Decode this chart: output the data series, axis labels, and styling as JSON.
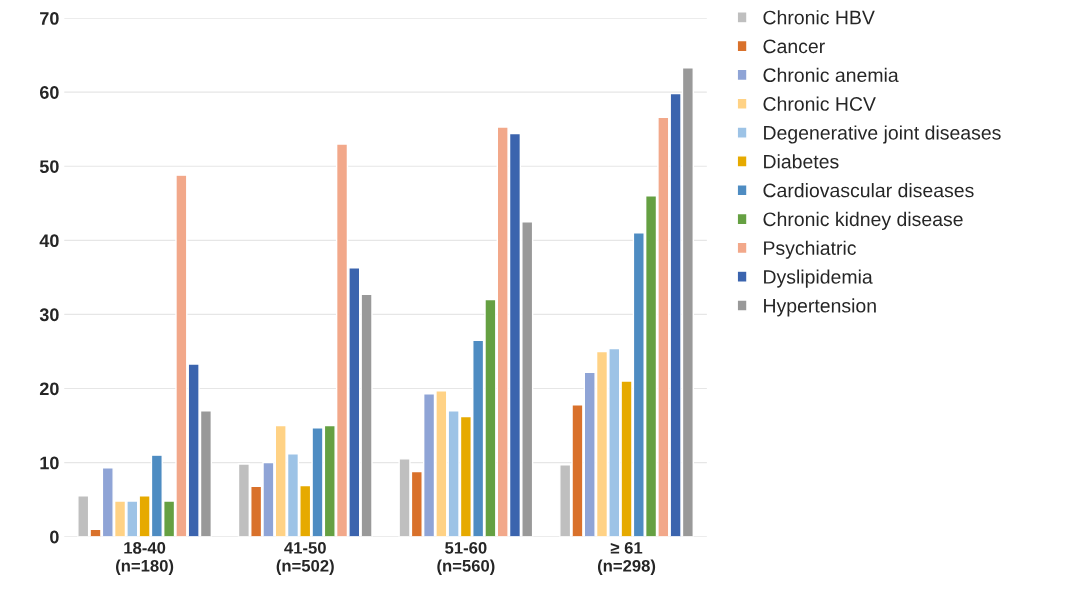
{
  "chart_data": {
    "type": "bar",
    "categories": [
      "18-40\n(n=180)",
      "41-50\n(n=502)",
      "51-60\n(n=560)",
      "≥ 61\n(n=298)"
    ],
    "series": [
      {
        "name": "Chronic HBV",
        "color": "#bfbfbf",
        "values": [
          5.5,
          9.8,
          10.5,
          9.7
        ]
      },
      {
        "name": "Cancer",
        "color": "#d9712b",
        "values": [
          1,
          6.8,
          8.8,
          17.8
        ]
      },
      {
        "name": "Chronic anemia",
        "color": "#8fa4d6",
        "values": [
          9.3,
          10,
          19.3,
          22.2
        ]
      },
      {
        "name": "Chronic HCV",
        "color": "#ffd285",
        "values": [
          4.8,
          15,
          19.7,
          25
        ]
      },
      {
        "name": "Degenerative joint diseases",
        "color": "#9dc3e6",
        "values": [
          4.8,
          11.2,
          17,
          25.4
        ]
      },
      {
        "name": "Diabetes",
        "color": "#e6aa00",
        "values": [
          5.5,
          6.9,
          16.2,
          21
        ]
      },
      {
        "name": "Cardiovascular diseases",
        "color": "#4e8cc2",
        "values": [
          11,
          14.7,
          26.5,
          41
        ]
      },
      {
        "name": "Chronic kidney disease",
        "color": "#65a042",
        "values": [
          4.8,
          15,
          32,
          46
        ]
      },
      {
        "name": "Psychiatric",
        "color": "#f2a88a",
        "values": [
          48.8,
          53,
          55.3,
          56.6
        ]
      },
      {
        "name": "Dyslipidemia",
        "color": "#3b64ae",
        "values": [
          23.3,
          36.3,
          54.4,
          59.8
        ]
      },
      {
        "name": "Hypertension",
        "color": "#999999",
        "values": [
          17,
          32.7,
          42.5,
          63.3
        ]
      }
    ],
    "ylim": [
      0,
      70
    ],
    "yticks": [
      0,
      10,
      20,
      30,
      40,
      50,
      60,
      70
    ],
    "grid": "y",
    "legend": "right"
  }
}
